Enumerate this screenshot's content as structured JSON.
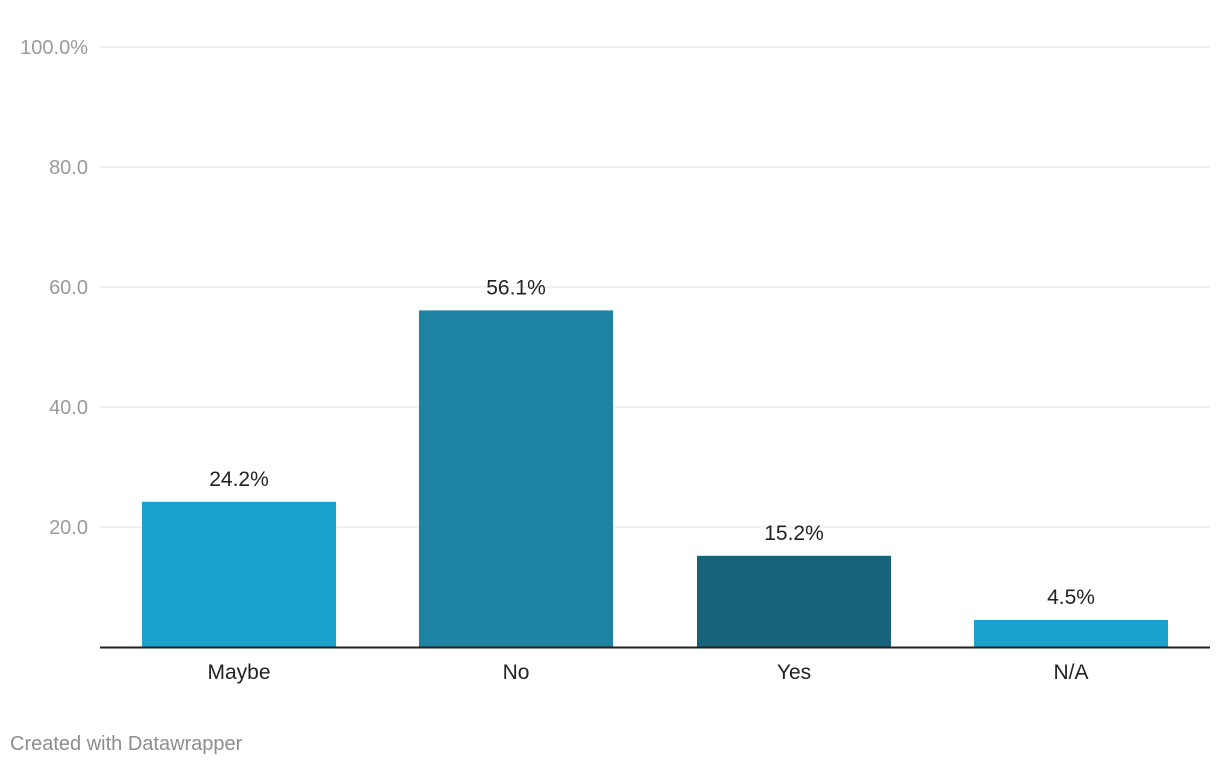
{
  "chart_data": {
    "type": "bar",
    "categories": [
      "Maybe",
      "No",
      "Yes",
      "N/A"
    ],
    "values": [
      24.2,
      56.1,
      15.2,
      4.5
    ],
    "value_labels": [
      "24.2%",
      "56.1%",
      "15.2%",
      "4.5%"
    ],
    "bar_colors": [
      "#1ba1ce",
      "#1e82a2",
      "#17637a",
      "#1ba1ce"
    ],
    "ylim": [
      0,
      100
    ],
    "yticks": [
      {
        "value": 20,
        "label": "20.0"
      },
      {
        "value": 40,
        "label": "40.0"
      },
      {
        "value": 60,
        "label": "60.0"
      },
      {
        "value": 80,
        "label": "80.0"
      },
      {
        "value": 100,
        "label": "100.0%"
      }
    ],
    "grid": true,
    "title": "",
    "xlabel": "",
    "ylabel": ""
  },
  "footer": {
    "credit": "Created with Datawrapper"
  },
  "colors": {
    "gridline": "#e2e2e2",
    "tick_label": "#9a9a9a",
    "axis_line": "#222222",
    "value_label": "#222222",
    "category_label": "#222222"
  }
}
